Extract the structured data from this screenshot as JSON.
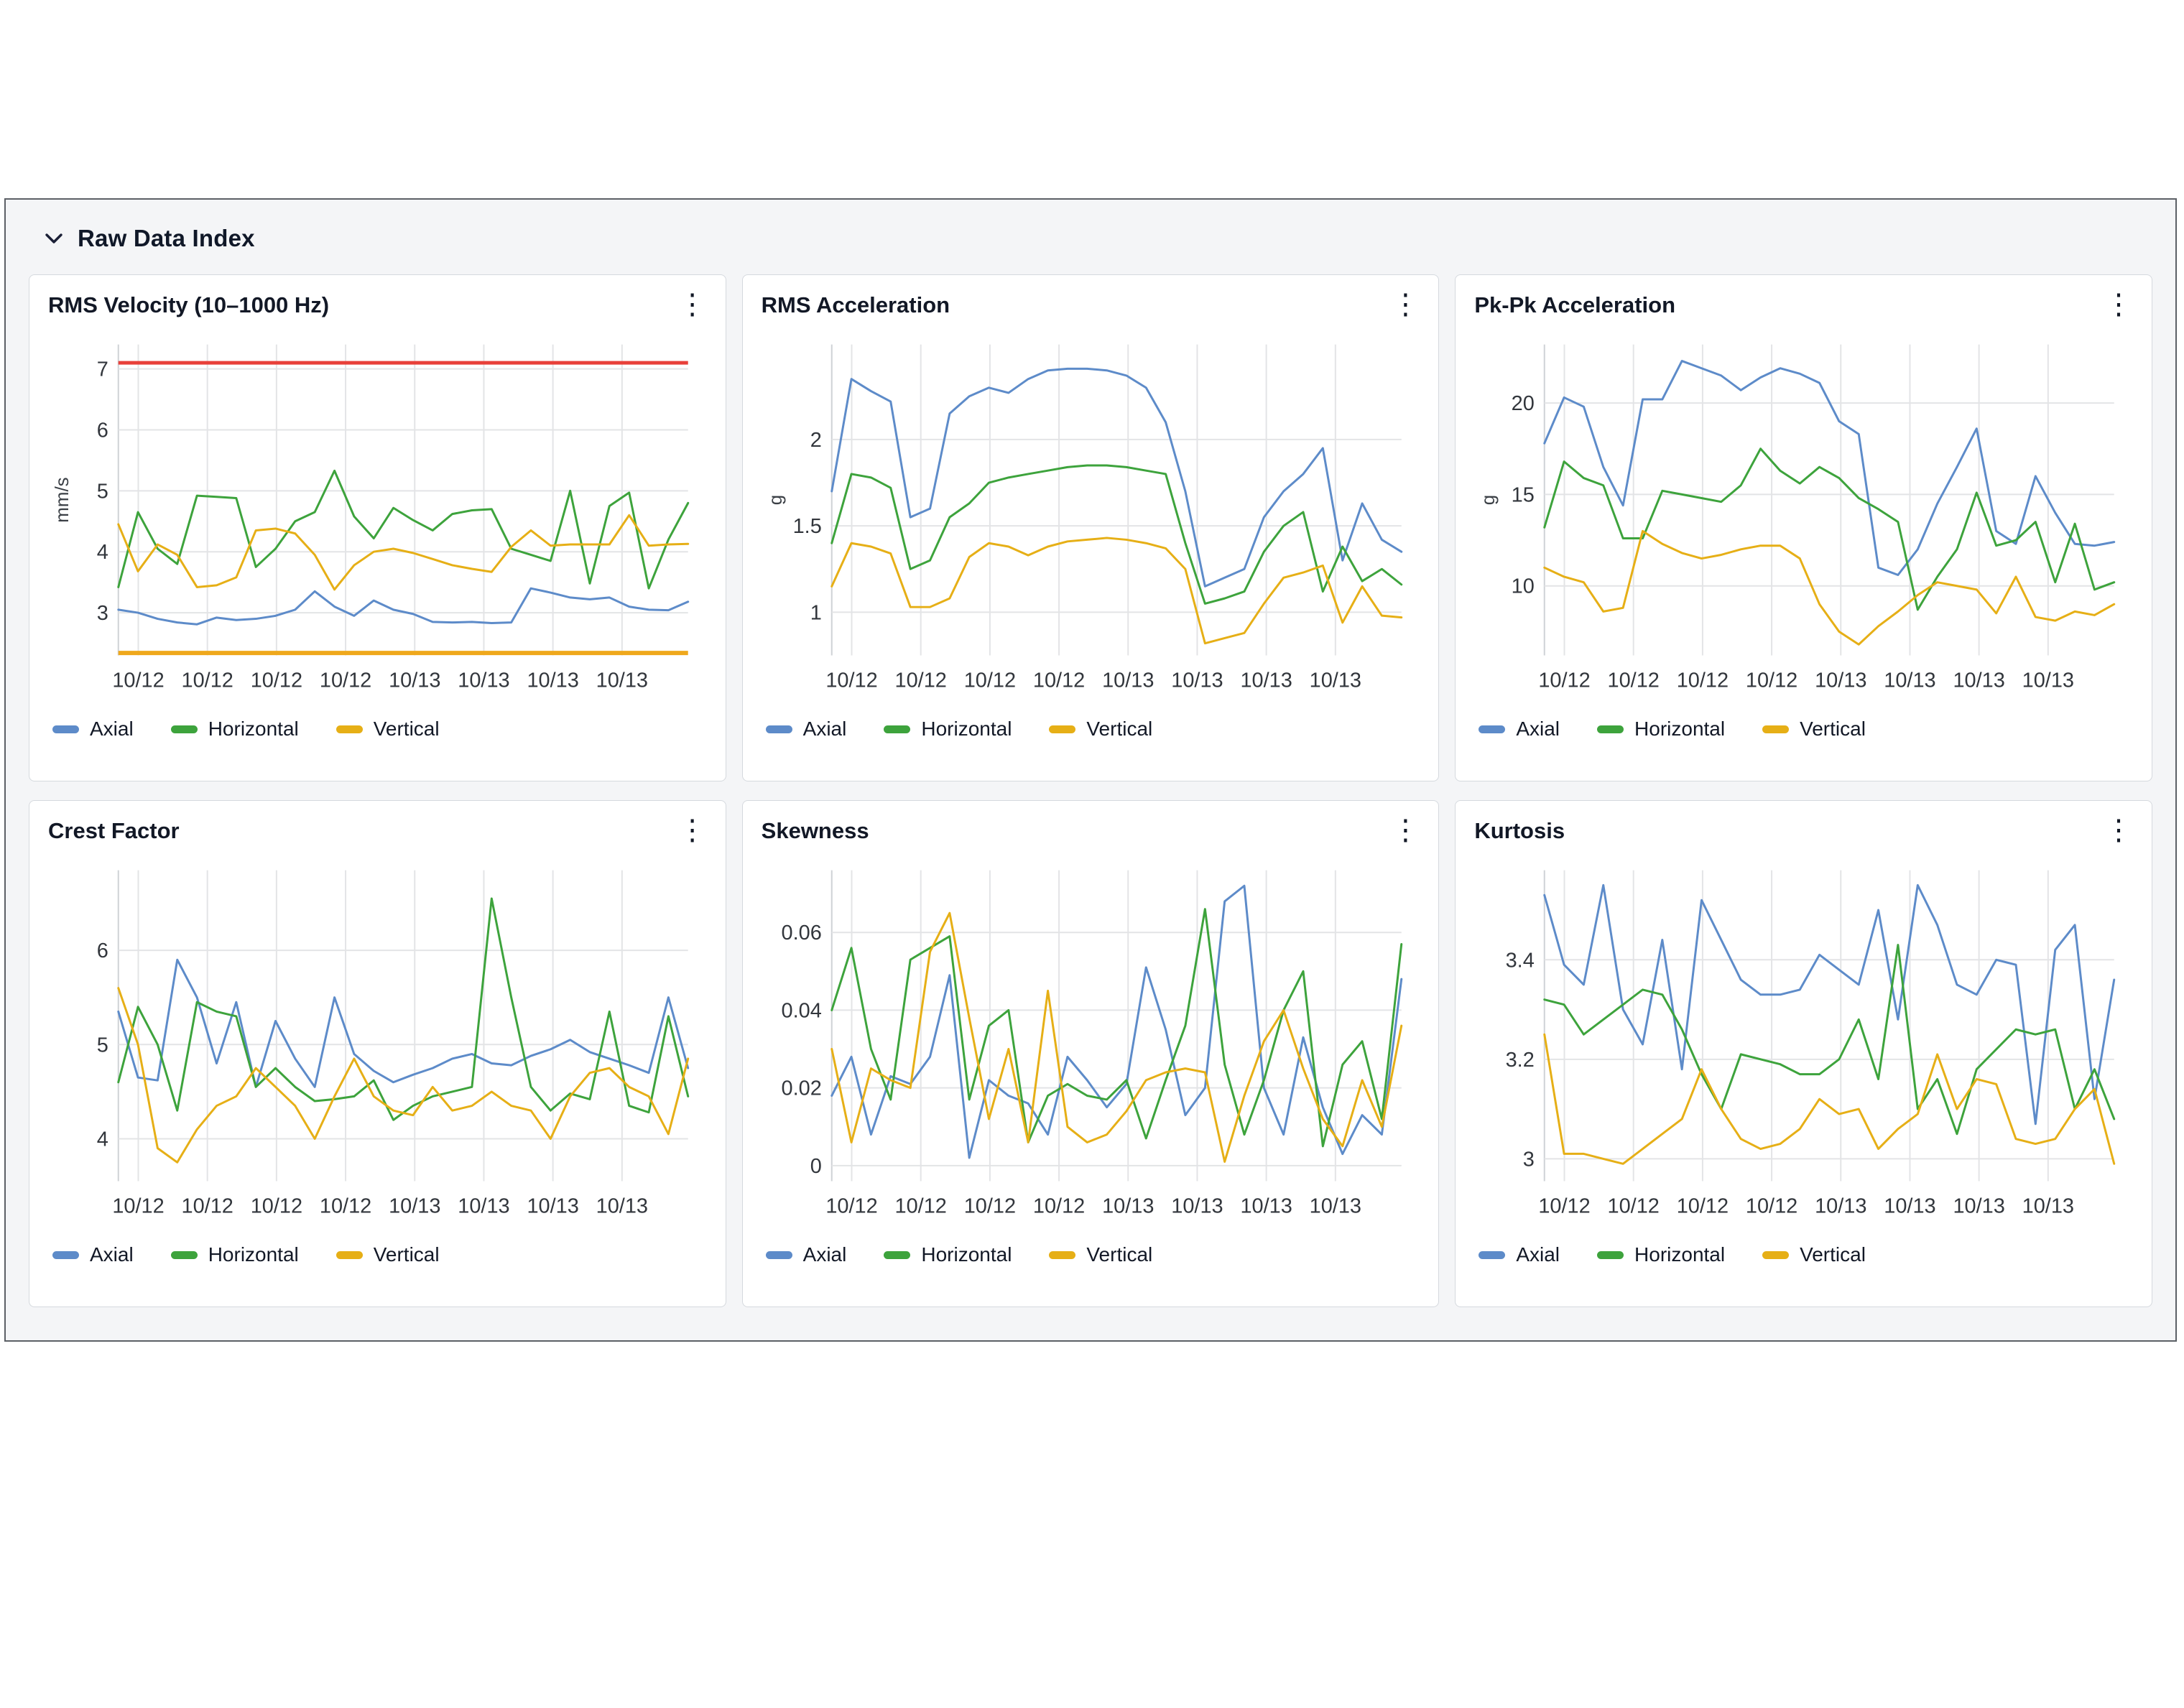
{
  "header": {
    "title": "Raw Data Index"
  },
  "legend_labels": [
    "Axial",
    "Horizontal",
    "Vertical"
  ],
  "colors": {
    "axial": "#5d8bc9",
    "horizontal": "#3da33c",
    "vertical": "#e6af16",
    "alert_threshold": "#e8403a",
    "warning_threshold": "#efa81c",
    "grid": "#e3e4e6",
    "axis": "#cfd2d6",
    "tick_text": "#32363c"
  },
  "chart_data": [
    {
      "type": "line",
      "title": "RMS Velocity (10–1000 Hz)",
      "ylabel": "mm/s",
      "ylim": [
        2.3,
        7.4
      ],
      "yticks": [
        3,
        4,
        5,
        6,
        7
      ],
      "x_labels": [
        "10/12",
        "10/12",
        "10/12",
        "10/12",
        "10/13",
        "10/13",
        "10/13",
        "10/13"
      ],
      "legend_position": "bottom",
      "grid": true,
      "thresholds": [
        {
          "name": "alert",
          "value": 7.1,
          "color": "#e8403a",
          "width": 5
        },
        {
          "name": "warning",
          "value": 2.34,
          "color": "#efa81c",
          "width": 6
        }
      ],
      "series": [
        {
          "name": "Axial",
          "color": "#5d8bc9",
          "values": [
            3.05,
            3.0,
            2.9,
            2.84,
            2.81,
            2.92,
            2.88,
            2.9,
            2.95,
            3.05,
            3.35,
            3.1,
            2.95,
            3.2,
            3.05,
            2.98,
            2.85,
            2.84,
            2.85,
            2.83,
            2.84,
            3.4,
            3.33,
            3.25,
            3.22,
            3.25,
            3.1,
            3.05,
            3.04,
            3.18
          ]
        },
        {
          "name": "Horizontal",
          "color": "#3da33c",
          "values": [
            3.42,
            4.65,
            4.05,
            3.8,
            4.92,
            4.9,
            4.88,
            3.75,
            4.05,
            4.5,
            4.65,
            5.33,
            4.58,
            4.22,
            4.72,
            4.52,
            4.35,
            4.62,
            4.68,
            4.7,
            4.05,
            3.95,
            3.85,
            5.0,
            3.48,
            4.75,
            4.97,
            3.4,
            4.2,
            4.8
          ]
        },
        {
          "name": "Vertical",
          "color": "#e6af16",
          "values": [
            4.45,
            3.68,
            4.12,
            3.95,
            3.42,
            3.45,
            3.58,
            4.35,
            4.38,
            4.3,
            3.95,
            3.38,
            3.78,
            4.0,
            4.05,
            3.98,
            3.88,
            3.78,
            3.72,
            3.67,
            4.08,
            4.35,
            4.1,
            4.12,
            4.12,
            4.12,
            4.6,
            4.1,
            4.12,
            4.13
          ]
        }
      ]
    },
    {
      "type": "line",
      "title": "RMS Acceleration",
      "ylabel": "g",
      "ylim": [
        0.75,
        2.55
      ],
      "yticks": [
        1,
        1.5,
        2
      ],
      "x_labels": [
        "10/12",
        "10/12",
        "10/12",
        "10/12",
        "10/13",
        "10/13",
        "10/13",
        "10/13"
      ],
      "legend_position": "bottom",
      "grid": true,
      "thresholds": [],
      "series": [
        {
          "name": "Axial",
          "color": "#5d8bc9",
          "values": [
            1.7,
            2.35,
            2.28,
            2.22,
            1.55,
            1.6,
            2.15,
            2.25,
            2.3,
            2.27,
            2.35,
            2.4,
            2.41,
            2.41,
            2.4,
            2.37,
            2.3,
            2.1,
            1.7,
            1.15,
            1.2,
            1.25,
            1.55,
            1.7,
            1.8,
            1.95,
            1.3,
            1.63,
            1.42,
            1.35
          ]
        },
        {
          "name": "Horizontal",
          "color": "#3da33c",
          "values": [
            1.4,
            1.8,
            1.78,
            1.72,
            1.25,
            1.3,
            1.55,
            1.63,
            1.75,
            1.78,
            1.8,
            1.82,
            1.84,
            1.85,
            1.85,
            1.84,
            1.82,
            1.8,
            1.4,
            1.05,
            1.08,
            1.12,
            1.35,
            1.5,
            1.58,
            1.12,
            1.38,
            1.18,
            1.25,
            1.16
          ]
        },
        {
          "name": "Vertical",
          "color": "#e6af16",
          "values": [
            1.15,
            1.4,
            1.38,
            1.34,
            1.03,
            1.03,
            1.08,
            1.32,
            1.4,
            1.38,
            1.33,
            1.38,
            1.41,
            1.42,
            1.43,
            1.42,
            1.4,
            1.37,
            1.25,
            0.82,
            0.85,
            0.88,
            1.05,
            1.2,
            1.23,
            1.27,
            0.94,
            1.15,
            0.98,
            0.97
          ]
        }
      ]
    },
    {
      "type": "line",
      "title": "Pk-Pk Acceleration",
      "ylabel": "g",
      "ylim": [
        6.2,
        23.2
      ],
      "yticks": [
        10,
        15,
        20
      ],
      "x_labels": [
        "10/12",
        "10/12",
        "10/12",
        "10/12",
        "10/13",
        "10/13",
        "10/13",
        "10/13"
      ],
      "legend_position": "bottom",
      "grid": true,
      "thresholds": [],
      "series": [
        {
          "name": "Axial",
          "color": "#5d8bc9",
          "values": [
            17.8,
            20.3,
            19.8,
            16.5,
            14.4,
            20.2,
            20.2,
            22.3,
            21.9,
            21.5,
            20.7,
            21.4,
            21.9,
            21.6,
            21.1,
            19.0,
            18.3,
            11.0,
            10.6,
            12.0,
            14.5,
            16.5,
            18.6,
            13.0,
            12.3,
            16.0,
            14.0,
            12.3,
            12.2,
            12.4
          ]
        },
        {
          "name": "Horizontal",
          "color": "#3da33c",
          "values": [
            13.2,
            16.8,
            15.9,
            15.5,
            12.6,
            12.6,
            15.2,
            15.0,
            14.8,
            14.6,
            15.5,
            17.5,
            16.3,
            15.6,
            16.5,
            15.9,
            14.8,
            14.2,
            13.5,
            8.7,
            10.5,
            12.0,
            15.1,
            12.2,
            12.5,
            13.5,
            10.2,
            13.4,
            9.8,
            10.2
          ]
        },
        {
          "name": "Vertical",
          "color": "#e6af16",
          "values": [
            11.0,
            10.5,
            10.2,
            8.6,
            8.8,
            13.0,
            12.3,
            11.8,
            11.5,
            11.7,
            12.0,
            12.2,
            12.2,
            11.5,
            9.0,
            7.5,
            6.8,
            7.8,
            8.6,
            9.5,
            10.2,
            10.0,
            9.8,
            8.5,
            10.5,
            8.3,
            8.1,
            8.6,
            8.4,
            9.0
          ]
        }
      ]
    },
    {
      "type": "line",
      "title": "Crest Factor",
      "ylabel": "",
      "ylim": [
        3.55,
        6.85
      ],
      "yticks": [
        4,
        5,
        6
      ],
      "x_labels": [
        "10/12",
        "10/12",
        "10/12",
        "10/12",
        "10/13",
        "10/13",
        "10/13",
        "10/13"
      ],
      "legend_position": "bottom",
      "grid": true,
      "thresholds": [],
      "series": [
        {
          "name": "Axial",
          "color": "#5d8bc9",
          "values": [
            5.35,
            4.65,
            4.62,
            5.9,
            5.5,
            4.8,
            5.45,
            4.55,
            5.25,
            4.85,
            4.55,
            5.5,
            4.9,
            4.72,
            4.6,
            4.68,
            4.75,
            4.85,
            4.9,
            4.8,
            4.78,
            4.88,
            4.95,
            5.05,
            4.92,
            4.85,
            4.78,
            4.7,
            5.5,
            4.75
          ]
        },
        {
          "name": "Horizontal",
          "color": "#3da33c",
          "values": [
            4.6,
            5.4,
            5.0,
            4.3,
            5.45,
            5.35,
            5.3,
            4.55,
            4.75,
            4.55,
            4.4,
            4.42,
            4.45,
            4.62,
            4.2,
            4.35,
            4.45,
            4.5,
            4.55,
            6.55,
            5.5,
            4.55,
            4.3,
            4.48,
            4.42,
            5.35,
            4.35,
            4.28,
            5.3,
            4.45
          ]
        },
        {
          "name": "Vertical",
          "color": "#e6af16",
          "values": [
            5.6,
            5.0,
            3.9,
            3.75,
            4.1,
            4.35,
            4.45,
            4.75,
            4.55,
            4.35,
            4.0,
            4.45,
            4.85,
            4.45,
            4.3,
            4.25,
            4.55,
            4.3,
            4.35,
            4.5,
            4.35,
            4.3,
            4.0,
            4.45,
            4.7,
            4.75,
            4.55,
            4.45,
            4.05,
            4.85
          ]
        }
      ]
    },
    {
      "type": "line",
      "title": "Skewness",
      "ylabel": "",
      "ylim": [
        -0.004,
        0.076
      ],
      "yticks": [
        0,
        0.02,
        0.04,
        0.06
      ],
      "x_labels": [
        "10/12",
        "10/12",
        "10/12",
        "10/12",
        "10/13",
        "10/13",
        "10/13",
        "10/13"
      ],
      "legend_position": "bottom",
      "grid": true,
      "thresholds": [],
      "series": [
        {
          "name": "Axial",
          "color": "#5d8bc9",
          "values": [
            0.018,
            0.028,
            0.008,
            0.023,
            0.021,
            0.028,
            0.049,
            0.002,
            0.022,
            0.018,
            0.016,
            0.008,
            0.028,
            0.022,
            0.015,
            0.021,
            0.051,
            0.035,
            0.013,
            0.02,
            0.068,
            0.072,
            0.02,
            0.008,
            0.033,
            0.015,
            0.003,
            0.013,
            0.008,
            0.048
          ]
        },
        {
          "name": "Horizontal",
          "color": "#3da33c",
          "values": [
            0.04,
            0.056,
            0.03,
            0.017,
            0.053,
            0.056,
            0.059,
            0.017,
            0.036,
            0.04,
            0.006,
            0.018,
            0.021,
            0.018,
            0.017,
            0.022,
            0.007,
            0.022,
            0.036,
            0.066,
            0.026,
            0.008,
            0.022,
            0.04,
            0.05,
            0.005,
            0.026,
            0.032,
            0.012,
            0.057
          ]
        },
        {
          "name": "Vertical",
          "color": "#e6af16",
          "values": [
            0.03,
            0.006,
            0.025,
            0.022,
            0.02,
            0.055,
            0.065,
            0.038,
            0.012,
            0.03,
            0.006,
            0.045,
            0.01,
            0.006,
            0.008,
            0.014,
            0.022,
            0.024,
            0.025,
            0.024,
            0.001,
            0.018,
            0.032,
            0.04,
            0.025,
            0.012,
            0.005,
            0.022,
            0.01,
            0.036
          ]
        }
      ]
    },
    {
      "type": "line",
      "title": "Kurtosis",
      "ylabel": "",
      "ylim": [
        2.955,
        3.58
      ],
      "yticks": [
        3,
        3.2,
        3.4
      ],
      "x_labels": [
        "10/12",
        "10/12",
        "10/12",
        "10/12",
        "10/13",
        "10/13",
        "10/13",
        "10/13"
      ],
      "legend_position": "bottom",
      "grid": true,
      "thresholds": [],
      "series": [
        {
          "name": "Axial",
          "color": "#5d8bc9",
          "values": [
            3.53,
            3.39,
            3.35,
            3.55,
            3.3,
            3.23,
            3.44,
            3.18,
            3.52,
            3.44,
            3.36,
            3.33,
            3.33,
            3.34,
            3.41,
            3.38,
            3.35,
            3.5,
            3.28,
            3.55,
            3.47,
            3.35,
            3.33,
            3.4,
            3.39,
            3.07,
            3.42,
            3.47,
            3.12,
            3.36
          ]
        },
        {
          "name": "Horizontal",
          "color": "#3da33c",
          "values": [
            3.32,
            3.31,
            3.25,
            3.28,
            3.31,
            3.34,
            3.33,
            3.26,
            3.17,
            3.1,
            3.21,
            3.2,
            3.19,
            3.17,
            3.17,
            3.2,
            3.28,
            3.16,
            3.43,
            3.1,
            3.16,
            3.05,
            3.18,
            3.22,
            3.26,
            3.25,
            3.26,
            3.1,
            3.18,
            3.08
          ]
        },
        {
          "name": "Vertical",
          "color": "#e6af16",
          "values": [
            3.25,
            3.01,
            3.01,
            3.0,
            2.99,
            3.02,
            3.05,
            3.08,
            3.18,
            3.1,
            3.04,
            3.02,
            3.03,
            3.06,
            3.12,
            3.09,
            3.1,
            3.02,
            3.06,
            3.09,
            3.21,
            3.1,
            3.16,
            3.15,
            3.04,
            3.03,
            3.04,
            3.1,
            3.14,
            2.99
          ]
        }
      ]
    }
  ]
}
